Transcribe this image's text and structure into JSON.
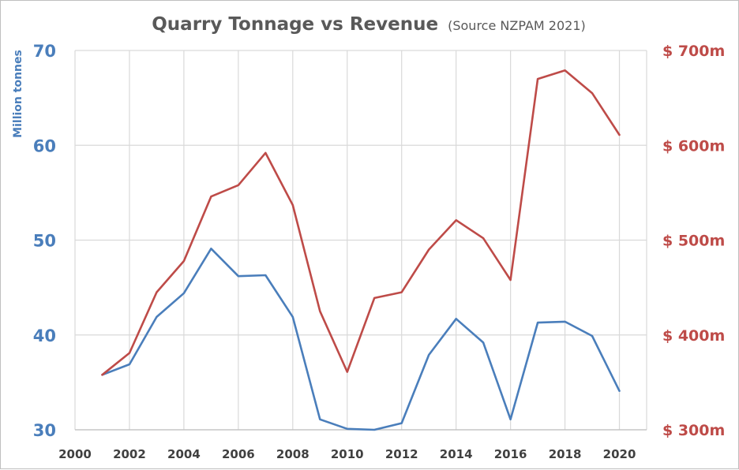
{
  "chart_data": {
    "type": "line",
    "title": "Quarry Tonnage vs Revenue",
    "subtitle": "(Source NZPAM 2021)",
    "ylabel_left": "Million tonnes",
    "x": [
      2001,
      2002,
      2003,
      2004,
      2005,
      2006,
      2007,
      2008,
      2009,
      2010,
      2011,
      2012,
      2013,
      2014,
      2015,
      2016,
      2017,
      2018,
      2019,
      2020
    ],
    "xlim": [
      2000,
      2021
    ],
    "x_ticks": [
      "2000",
      "2002",
      "2004",
      "2006",
      "2008",
      "2010",
      "2012",
      "2014",
      "2016",
      "2018",
      "2020"
    ],
    "ylim_left": [
      30,
      70
    ],
    "y_ticks_left": [
      "30",
      "40",
      "50",
      "60",
      "70"
    ],
    "ylim_right": [
      300,
      700
    ],
    "y_ticks_right": [
      "$ 300m",
      "$ 400m",
      "$ 500m",
      "$ 600m",
      "$ 700m"
    ],
    "grid": true,
    "series": [
      {
        "axis": "left",
        "color": "#4a7ebb",
        "values": [
          35.8,
          36.9,
          41.9,
          44.4,
          49.1,
          46.2,
          46.3,
          41.9,
          31.1,
          30.1,
          30.0,
          30.7,
          37.9,
          41.7,
          39.2,
          31.1,
          41.3,
          41.4,
          39.9,
          34.1
        ]
      },
      {
        "axis": "right",
        "color": "#be4b48",
        "values": [
          358,
          381,
          445,
          478,
          546,
          558,
          592,
          537,
          425,
          361,
          439,
          445,
          490,
          521,
          502,
          458,
          670,
          679,
          655,
          611
        ]
      }
    ]
  }
}
